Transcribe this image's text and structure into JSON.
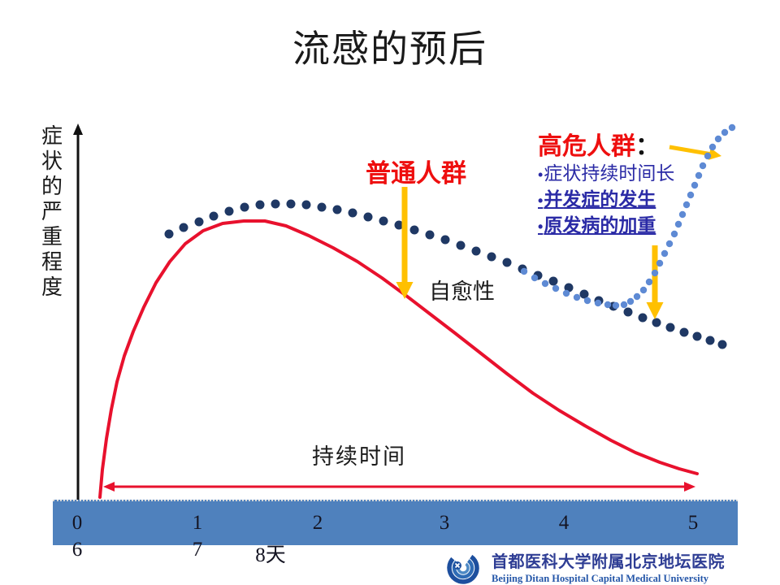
{
  "slide": {
    "title": "流感的预后",
    "y_axis_chars": [
      "症",
      "状",
      "的",
      "严",
      "重",
      "程",
      "度"
    ],
    "labels": {
      "general_population": "普通人群",
      "self_healing": "自愈性",
      "duration": "持续时间"
    },
    "high_risk": {
      "title": "高危人群",
      "colon": "：",
      "bullet_char": "•",
      "items": [
        {
          "text": "症状持续时间长",
          "bold": false,
          "underline": false
        },
        {
          "text": "并发症的发生",
          "bold": true,
          "underline": true
        },
        {
          "text": "原发病的加重",
          "bold": true,
          "underline": true
        }
      ]
    },
    "logo": {
      "cn": "首都医科大学附属北京地坛医院",
      "en": "Beijing Ditan Hospital Capital Medical University"
    },
    "colors": {
      "red_curve": "#e8112d",
      "red_text": "#ee0f0f",
      "navy_dot": "#1f3864",
      "light_blue_dot": "#5e8ad4",
      "yellow_arrow": "#ffc000",
      "band_blue": "#4f81bd",
      "bullet_text_blue": "#2b2ba6"
    }
  },
  "chart_data": {
    "type": "line",
    "title": "流感的预后",
    "ylabel": "症状的严重程度",
    "xlabel": "持续时间",
    "x_unit": "天",
    "x_ticks_row1": [
      "0",
      "1",
      "2",
      "3",
      "4",
      "5"
    ],
    "x_ticks_row2": [
      "6",
      "7",
      "8天"
    ],
    "annotations": [
      "普通人群",
      "自愈性",
      "持续时间",
      "高危人群：症状持续时间长 / 并发症的发生 / 原发病的加重"
    ],
    "legend_position": "none",
    "grid": false,
    "series": [
      {
        "name": "普通人群（自愈性病程）",
        "style": "solid",
        "color": "#e8112d",
        "width": 4,
        "z": 1,
        "points": [
          [
            123,
            612
          ],
          [
            126,
            578
          ],
          [
            131,
            540
          ],
          [
            137,
            504
          ],
          [
            144,
            470
          ],
          [
            153,
            438
          ],
          [
            164,
            408
          ],
          [
            177,
            378
          ],
          [
            192,
            348
          ],
          [
            209,
            322
          ],
          [
            228,
            300
          ],
          [
            250,
            284
          ],
          [
            274,
            275
          ],
          [
            300,
            272
          ],
          [
            326,
            272
          ],
          [
            352,
            278
          ],
          [
            380,
            290
          ],
          [
            410,
            305
          ],
          [
            440,
            322
          ],
          [
            470,
            342
          ],
          [
            500,
            364
          ],
          [
            530,
            387
          ],
          [
            560,
            410
          ],
          [
            592,
            435
          ],
          [
            624,
            460
          ],
          [
            656,
            484
          ],
          [
            688,
            505
          ],
          [
            720,
            524
          ],
          [
            752,
            542
          ],
          [
            782,
            557
          ],
          [
            812,
            569
          ],
          [
            836,
            577
          ],
          [
            858,
            583
          ]
        ]
      },
      {
        "name": "高危人群：症状持续时间长",
        "style": "dots",
        "color": "#1f3864",
        "dot_radius": 5.5,
        "z": 1,
        "points": [
          [
            208,
            288
          ],
          [
            226,
            280
          ],
          [
            245,
            273
          ],
          [
            263,
            266
          ],
          [
            282,
            260
          ],
          [
            301,
            255
          ],
          [
            320,
            252
          ],
          [
            339,
            251
          ],
          [
            358,
            251
          ],
          [
            377,
            252
          ],
          [
            396,
            255
          ],
          [
            415,
            258
          ],
          [
            434,
            262
          ],
          [
            453,
            267
          ],
          [
            472,
            272
          ],
          [
            491,
            277
          ],
          [
            510,
            283
          ],
          [
            529,
            289
          ],
          [
            548,
            295
          ],
          [
            567,
            302
          ],
          [
            586,
            309
          ],
          [
            605,
            316
          ],
          [
            624,
            323
          ],
          [
            643,
            331
          ],
          [
            662,
            339
          ],
          [
            681,
            346
          ],
          [
            700,
            354
          ],
          [
            719,
            362
          ],
          [
            737,
            370
          ],
          [
            755,
            377
          ],
          [
            773,
            384
          ],
          [
            791,
            391
          ],
          [
            808,
            397
          ],
          [
            825,
            403
          ],
          [
            842,
            409
          ],
          [
            858,
            414
          ],
          [
            874,
            419
          ],
          [
            889,
            424
          ]
        ]
      },
      {
        "name": "高危人群：并发症的发生/原发病的加重",
        "style": "dots",
        "color": "#5e8ad4",
        "dot_radius": 4.2,
        "z": 3,
        "points": [
          [
            645,
            334
          ],
          [
            658,
            342
          ],
          [
            671,
            349
          ],
          [
            684,
            355
          ],
          [
            697,
            361
          ],
          [
            710,
            366
          ],
          [
            723,
            370
          ],
          [
            736,
            373
          ],
          [
            748,
            375
          ],
          [
            758,
            376
          ],
          [
            768,
            375
          ],
          [
            776,
            371
          ],
          [
            784,
            365
          ],
          [
            792,
            357
          ],
          [
            799,
            347
          ],
          [
            806,
            336
          ],
          [
            812,
            324
          ],
          [
            818,
            312
          ],
          [
            824,
            300
          ],
          [
            830,
            288
          ],
          [
            835,
            276
          ],
          [
            840,
            264
          ],
          [
            845,
            252
          ],
          [
            850,
            240
          ],
          [
            855,
            228
          ],
          [
            860,
            216
          ],
          [
            865,
            204
          ],
          [
            871,
            192
          ],
          [
            877,
            181
          ],
          [
            884,
            171
          ],
          [
            892,
            163
          ],
          [
            901,
            157
          ]
        ]
      }
    ],
    "arrows": [
      {
        "name": "y-axis-arrow",
        "from": [
          96,
          618
        ],
        "to": [
          96,
          152
        ],
        "color": "#111111",
        "width": 3,
        "heads": "end",
        "z": 0
      },
      {
        "name": "duration-double-arrow",
        "from": [
          127,
          599
        ],
        "to": [
          856,
          599
        ],
        "color": "#e8112d",
        "width": 3,
        "heads": "both",
        "z": 2
      },
      {
        "name": "general-population-pointer",
        "from": [
          498,
          230
        ],
        "to": [
          498,
          368
        ],
        "color": "#ffc000",
        "width": 7,
        "heads": "end",
        "z": 2
      },
      {
        "name": "high-risk-down-pointer",
        "from": [
          806,
          302
        ],
        "to": [
          806,
          393
        ],
        "color": "#ffc000",
        "width": 7,
        "heads": "end",
        "z": 2
      },
      {
        "name": "high-risk-diagonal-pointer",
        "from": [
          824,
          181
        ],
        "to": [
          888,
          192
        ],
        "color": "#ffc000",
        "width": 5,
        "heads": "end",
        "z": 2
      }
    ]
  }
}
